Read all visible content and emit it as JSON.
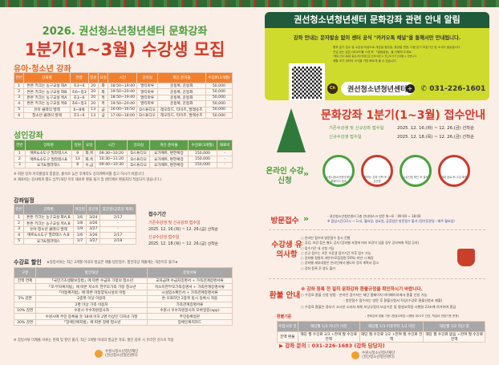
{
  "header": {
    "line1": "2026. 권선청소년청년센터 문화강좌",
    "line2": "1분기(1~3월) 수강생 모집"
  },
  "youth": {
    "title": "유아·청소년 강좌",
    "headers": [
      "연번",
      "강좌명",
      "연령",
      "정원",
      "요일",
      "시간",
      "강의실",
      "개인 준비물",
      "수강료(3개월)"
    ],
    "rows": [
      [
        "1",
        "튼튼 키크는 농구교실 화A",
        "초3~6",
        "20",
        "화",
        "18:50~19:40",
        "멀티마루",
        "운동복, 운동화",
        "50,000"
      ],
      [
        "2",
        "튼튼 키크는 농구교실 화B",
        "초6~중3",
        "20",
        "화",
        "19:50~20:40",
        "멀티마루",
        "운동복, 운동화",
        "50,000"
      ],
      [
        "3",
        "튼튼 키크는 농구교실 목A",
        "초3~6",
        "20",
        "목",
        "18:50~19:40",
        "멀티마루",
        "운동복, 운동화",
        "50,000"
      ],
      [
        "4",
        "튼튼 키크는 농구교실 목B",
        "초6~중3",
        "20",
        "목",
        "19:50~20:40",
        "멀티마루",
        "운동복, 운동화",
        "50,000"
      ],
      [
        "5",
        "유아 클래식 발레",
        "6~8세",
        "13",
        "금",
        "16:00~16:50",
        "D스튜디오",
        "레오타드, 타이즈, 발레슈즈",
        "50,000"
      ],
      [
        "6",
        "청소년 클래식 발레",
        "초1~6",
        "13",
        "금",
        "17:00~18:00",
        "D스튜디오",
        "레오타드, 타이즈, 발레슈즈",
        "50,000"
      ]
    ]
  },
  "adult": {
    "title": "성인강좌",
    "headers": [
      "연번",
      "강좌명",
      "정원",
      "요일",
      "시간",
      "강의실",
      "개인 준비물",
      "수강료(3개월)",
      "재료비"
    ],
    "rows": [
      [
        "1",
        "매트&소도구 필라테스A",
        "9",
        "화,목",
        "09:30~10:20",
        "D스튜디오",
        "요가매트, 편한복장",
        "150,000",
        "-"
      ],
      [
        "2",
        "매트&소도구 필라테스B",
        "13",
        "화,목",
        "10:30~11:20",
        "D스튜디오",
        "요가매트, 편한복장",
        "150,000",
        "-"
      ],
      [
        "3",
        "요가&필라테스",
        "8",
        "수,금",
        "09:40~10:30",
        "D스튜디오",
        "요가매트, 편한복장",
        "150,000",
        "-"
      ]
    ],
    "notes": [
      "※ 회원 강좌 커리큘럼의 통합강, 출석로 늦은 후에라도 강의계획서를 참고 하시기 바랍니다.",
      "※ 재료비는 강사에게 별도 납부(개강 이후 재료비 환불 불가 및 센터에서 환불처리 적용되지 않습니다.)"
    ]
  },
  "schedule": {
    "title": "강좌일정",
    "headers": [
      "연번",
      "강좌명",
      "개강일",
      "종강일",
      "휴강일(공휴일 제외)"
    ],
    "rows": [
      [
        "1",
        "튼튼 키크는 농구교실 화A,B",
        "1/6",
        "3/24",
        "2/17"
      ],
      [
        "2",
        "튼튼 키크는 농구교실 목A,B",
        "1/8",
        "3/26",
        "-"
      ],
      [
        "3",
        "유아·청소년 클래식 발레",
        "1/9",
        "3/27",
        "-"
      ],
      [
        "4",
        "매트&소도구 필라테스 A,B",
        "1/6",
        "3/26",
        "2/17"
      ],
      [
        "5",
        "요가&필라테스",
        "1/7",
        "3/27",
        "2/18"
      ]
    ]
  },
  "period": {
    "title": "접수기간",
    "a_label": "기존수강생 및 신규강좌 접수일",
    "a_date": "2025. 12. 16.(화) ~ 12. 26.(금) 선착순",
    "b_label": "신규수강생 접수일",
    "b_date": "2025. 12. 18.(목) ~ 12. 26.(금) 선착순"
  },
  "discount": {
    "title": "수강료 할인",
    "sub": "★증빙서류는 최근 3개월 이내의 발급본 제출·방문접수, 할인대상 제출에는 개강이후 불가★",
    "headers": [
      "구분",
      "할인대상",
      "증빙서류"
    ],
    "rows": [
      [
        "전액 면제",
        "「국민기초생활보장법」에 따른 수급자 가정의 청소년",
        "교육급여 수급자증명서 + 가족관계증명서류"
      ],
      [
        "",
        "「모·부자복지법」에 따른 저소득 한부모가족 가정 청소년",
        "저소득한부모가족증명서 + 가족관계증명서류"
      ],
      [
        "",
        "「아동복지법」에 따른 아동양육시설의 아동",
        "시설입소확인서 + 가족관계증명서류"
      ],
      [
        "5% 감면",
        "2종목 이상 이용자",
        "온·오프라인 2종목 동시 등록시 적용"
      ],
      [
        "",
        "2명 이상 가족 이용자",
        "가족관계증명서류"
      ],
      [
        "10% 감면",
        "수원시 우수자원봉사자",
        "수원시 우수자원봉사자 모바일증(app)"
      ],
      [
        "",
        "수원시에 주민 등록을 둔 18세 이하 2명 이상인 다자녀 가정",
        "주민등록등본"
      ],
      [
        "30% 감면",
        "「장애인복지법」에 따른 장애 청소년",
        "장애인복지카드"
      ]
    ],
    "note": "※ 증빙서류 미제출 서류는 면제 및 할인 불가, 최근 3개월 이내의 발급본 유효, 할인 중복 시 유리한 것으로 적용"
  },
  "org": {
    "name": "수원시청소년청년재단",
    "sub": "(권선청소년청년센터)"
  },
  "notice": {
    "title": "권선청소년청년센터 문화강좌 관련 안내 알림",
    "lead": "강좌 안내는 문자발송 없이 센터 공식 \"카카오톡 채널\"을 통해서만 안내됩니다.",
    "lines": [
      "향후 분기 접수 및 수강생 이상으로 개강일·종강일, 휴강일 변경, 다음 분기 모집기간 등 소식이 발송됩니다.",
      "관심 있는 분은 QR코드를 스캔 후 「알림설정」을 진행해 주세요.",
      "*채팅 안내 내용은 중요사항 변경으로 인해 바뀔 수 있으며 추가 안내될 수 있습니다.",
      "매월 추가 센터의 소식을 가장 빠르게 볼 수 있습니다."
    ],
    "channel": "권선청소년청년센터",
    "phone": "031-226-1601",
    "ch": "Ch"
  },
  "apply": {
    "title": "문화강좌 1분기(1~3월) 접수안내",
    "a_label": "기존수강생 및 신규강좌 접수일",
    "a_date": "2025. 12. 16.(화) ~ 12. 26.(금) 선착순",
    "b_label": "신규수강생 접수일",
    "b_date": "2025. 12. 18.(목) ~ 12. 26.(금) 선착순",
    "online": "온라인 수강신청",
    "steps": [
      "수원시청소년청년재단 홈페이지 접속",
      "원하는 강좌 선택 후 수강신청",
      "수강신청 확인 후 결제",
      "결제 완료 후 수강 확정"
    ],
    "visit": "방문접수",
    "visit_lines": [
      "- 권선청소년청년센터 1층 안내데스크 방문 화~토 : 09:00 ~ 18:00",
      "※ 점심시간(12시 ~ 1시), 월요일, 일요일, 공휴일은 방문접수 불가 (정기휴관일 : 매주 월요일)"
    ]
  },
  "caution": {
    "title": "수강생 유의사항",
    "lines": [
      "○ 온라인 접수와 방문접수 동시 진행",
      "○ 휴강, 보강 등은 별도 공지 (강좌별 사정에 따라 보강이 있을 경우 강사에게 직접 공지)",
      "○ 접수기간 내 신청 가능",
      "○ 신규 접수는 기존 수강생 접수기간 이후 접수 가능",
      "○ 강좌별 정원의 과반수(모집정원 50%) 미만 시 폐강",
      "○ 강좌별 세부내용은 온라인에서 별도의 강의 계획서 참고",
      "○ 강좌 등록 후 양도 불가"
    ]
  },
  "refund": {
    "title": "환불 안내",
    "warn": "※ 강좌 등록 전 필히 문화강좌 환불규정을 확인하시기 바랍니다.",
    "l1": "○ 수강료 환불 신청 방법   - 온라인 접수자는 재단 홈페이지 마이페이지에서 환불 신청 가능",
    "l2": "- 방문접수 접수자는 방문 후 환불신청서 작성(수강료 환불신청서 제출)",
    "l3": "○ 수강료 환불은 정부기 고시한 소비자 피해 보상규정의 보상기준 및 평생교육법 시행령 23조에 의거하여 환급",
    "std": "환불기준",
    "std_note": "- 문화강좌 환불 기준 (평생교육법 시행령 제23조 관련, 학습비 반환기준 준용)",
    "headers": [
      "수업시작 전",
      "해당월 1/3 지나기 이전",
      "해당월 1/3 이후부터 1/2 이전",
      "해당월 1/2 지난 후"
    ],
    "row": [
      "전액 환불",
      "해당 월 수강료 2/3 +잔여 월 수강료 전액",
      "해당 월 수강료 1/2 +잔여 월 수강료 전액",
      "해당 월 수강료 없음 +잔여 월 수강료 전액"
    ],
    "contact": "▶ 강좌 문의 : 031-226-1683 (강좌 담당자)"
  },
  "colors": {
    "green": "#4a9a3a",
    "red": "#d33a28",
    "orange": "#f08030",
    "dark_green": "#1f5a3c",
    "lime": "#cfdb2c"
  }
}
